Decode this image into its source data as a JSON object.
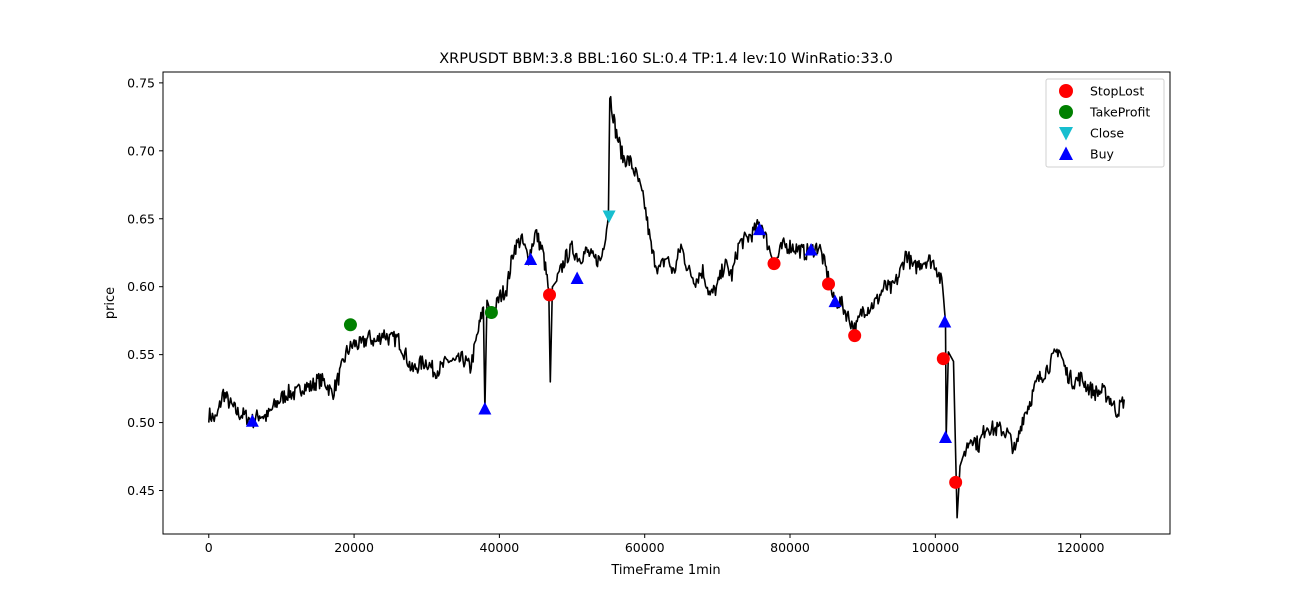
{
  "chart_data": {
    "type": "line",
    "title": "XRPUSDT BBM:3.8 BBL:160 SL:0.4 TP:1.4 lev:10 WinRatio:33.0",
    "xlabel": "TimeFrame 1min",
    "ylabel": "price",
    "xlim": [
      -6300,
      132300
    ],
    "ylim": [
      0.418,
      0.758
    ],
    "x_ticks": [
      0,
      20000,
      40000,
      60000,
      80000,
      100000,
      120000
    ],
    "x_tick_labels": [
      "0",
      "20000",
      "40000",
      "60000",
      "80000",
      "100000",
      "120000"
    ],
    "y_ticks": [
      0.45,
      0.5,
      0.55,
      0.6,
      0.65,
      0.7,
      0.75
    ],
    "y_tick_labels": [
      "0.45",
      "0.50",
      "0.55",
      "0.60",
      "0.65",
      "0.70",
      "0.75"
    ],
    "grid": false,
    "legend_position": "top-right",
    "price_series": {
      "color": "#000000",
      "points": [
        [
          0,
          0.506
        ],
        [
          1000,
          0.502
        ],
        [
          2000,
          0.522
        ],
        [
          3000,
          0.513
        ],
        [
          4000,
          0.507
        ],
        [
          5000,
          0.505
        ],
        [
          6000,
          0.501
        ],
        [
          7000,
          0.506
        ],
        [
          8000,
          0.504
        ],
        [
          9000,
          0.512
        ],
        [
          10000,
          0.518
        ],
        [
          11000,
          0.522
        ],
        [
          12000,
          0.521
        ],
        [
          13000,
          0.527
        ],
        [
          14000,
          0.526
        ],
        [
          15000,
          0.531
        ],
        [
          16000,
          0.53
        ],
        [
          17000,
          0.521
        ],
        [
          18000,
          0.535
        ],
        [
          19000,
          0.552
        ],
        [
          20000,
          0.558
        ],
        [
          21000,
          0.557
        ],
        [
          22000,
          0.563
        ],
        [
          23000,
          0.559
        ],
        [
          24000,
          0.566
        ],
        [
          25000,
          0.561
        ],
        [
          26000,
          0.562
        ],
        [
          27000,
          0.551
        ],
        [
          28000,
          0.538
        ],
        [
          29000,
          0.543
        ],
        [
          30000,
          0.545
        ],
        [
          31000,
          0.538
        ],
        [
          32000,
          0.54
        ],
        [
          33000,
          0.546
        ],
        [
          34000,
          0.544
        ],
        [
          35000,
          0.547
        ],
        [
          36000,
          0.54
        ],
        [
          37000,
          0.565
        ],
        [
          37800,
          0.585
        ],
        [
          38000,
          0.51
        ],
        [
          38300,
          0.59
        ],
        [
          39000,
          0.578
        ],
        [
          40000,
          0.592
        ],
        [
          41000,
          0.599
        ],
        [
          42000,
          0.628
        ],
        [
          43000,
          0.635
        ],
        [
          44000,
          0.621
        ],
        [
          45000,
          0.64
        ],
        [
          46000,
          0.625
        ],
        [
          46800,
          0.597
        ],
        [
          47000,
          0.53
        ],
        [
          47300,
          0.6
        ],
        [
          48000,
          0.605
        ],
        [
          49000,
          0.62
        ],
        [
          50000,
          0.628
        ],
        [
          51000,
          0.621
        ],
        [
          52000,
          0.626
        ],
        [
          53000,
          0.62
        ],
        [
          54000,
          0.62
        ],
        [
          55000,
          0.652
        ],
        [
          55200,
          0.742
        ],
        [
          56000,
          0.715
        ],
        [
          57000,
          0.695
        ],
        [
          58000,
          0.692
        ],
        [
          59000,
          0.68
        ],
        [
          60000,
          0.66
        ],
        [
          61000,
          0.625
        ],
        [
          62000,
          0.612
        ],
        [
          63000,
          0.622
        ],
        [
          64000,
          0.61
        ],
        [
          65000,
          0.63
        ],
        [
          66000,
          0.612
        ],
        [
          67000,
          0.605
        ],
        [
          68000,
          0.612
        ],
        [
          69000,
          0.593
        ],
        [
          70000,
          0.6
        ],
        [
          71000,
          0.617
        ],
        [
          72000,
          0.608
        ],
        [
          73000,
          0.632
        ],
        [
          74000,
          0.635
        ],
        [
          75000,
          0.64
        ],
        [
          76000,
          0.648
        ],
        [
          77000,
          0.63
        ],
        [
          78000,
          0.618
        ],
        [
          79000,
          0.63
        ],
        [
          80000,
          0.63
        ],
        [
          81000,
          0.628
        ],
        [
          82000,
          0.625
        ],
        [
          83000,
          0.627
        ],
        [
          84000,
          0.63
        ],
        [
          85000,
          0.612
        ],
        [
          86000,
          0.59
        ],
        [
          87000,
          0.588
        ],
        [
          88000,
          0.578
        ],
        [
          89000,
          0.568
        ],
        [
          90000,
          0.583
        ],
        [
          91000,
          0.585
        ],
        [
          92000,
          0.59
        ],
        [
          93000,
          0.6
        ],
        [
          94000,
          0.598
        ],
        [
          95000,
          0.608
        ],
        [
          96000,
          0.625
        ],
        [
          97000,
          0.613
        ],
        [
          98000,
          0.618
        ],
        [
          99000,
          0.62
        ],
        [
          100000,
          0.617
        ],
        [
          101000,
          0.6
        ],
        [
          101400,
          0.574
        ],
        [
          101500,
          0.49
        ],
        [
          101800,
          0.552
        ],
        [
          102500,
          0.545
        ],
        [
          103000,
          0.43
        ],
        [
          103400,
          0.468
        ],
        [
          104000,
          0.478
        ],
        [
          105000,
          0.49
        ],
        [
          106000,
          0.483
        ],
        [
          107000,
          0.498
        ],
        [
          108000,
          0.495
        ],
        [
          109000,
          0.495
        ],
        [
          110000,
          0.492
        ],
        [
          111000,
          0.478
        ],
        [
          112000,
          0.503
        ],
        [
          113000,
          0.515
        ],
        [
          114000,
          0.53
        ],
        [
          115000,
          0.537
        ],
        [
          116000,
          0.545
        ],
        [
          117000,
          0.555
        ],
        [
          118000,
          0.537
        ],
        [
          119000,
          0.53
        ],
        [
          120000,
          0.533
        ],
        [
          121000,
          0.526
        ],
        [
          122000,
          0.522
        ],
        [
          123000,
          0.523
        ],
        [
          124000,
          0.518
        ],
        [
          125000,
          0.508
        ],
        [
          126000,
          0.517
        ]
      ]
    },
    "series": [
      {
        "name": "StopLost",
        "marker": "circle",
        "color": "#ff0000",
        "points": [
          [
            46900,
            0.594
          ],
          [
            77800,
            0.617
          ],
          [
            85300,
            0.602
          ],
          [
            88900,
            0.564
          ],
          [
            101100,
            0.547
          ],
          [
            102800,
            0.456
          ]
        ]
      },
      {
        "name": "TakeProfit",
        "marker": "circle",
        "color": "#008000",
        "points": [
          [
            19500,
            0.572
          ],
          [
            38900,
            0.581
          ]
        ]
      },
      {
        "name": "Close",
        "marker": "triangle-down",
        "color": "#17becf",
        "points": [
          [
            55100,
            0.652
          ]
        ]
      },
      {
        "name": "Buy",
        "marker": "triangle-up",
        "color": "#0000ff",
        "points": [
          [
            6000,
            0.501
          ],
          [
            38000,
            0.51
          ],
          [
            44300,
            0.62
          ],
          [
            50700,
            0.606
          ],
          [
            75800,
            0.642
          ],
          [
            82900,
            0.627
          ],
          [
            86200,
            0.589
          ],
          [
            101300,
            0.574
          ],
          [
            101400,
            0.489
          ]
        ]
      }
    ]
  }
}
